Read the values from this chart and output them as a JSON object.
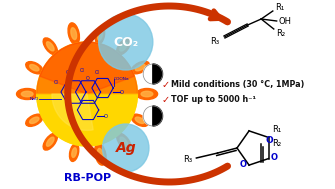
{
  "bg_color": "#ffffff",
  "rb_pop_label": "RB-POP",
  "rb_pop_color": "#0000cc",
  "co2_label": "CO₂",
  "ag_label": "Ag",
  "co2_circle_color": "#7ec8e3",
  "ag_circle_color": "#7ec8e3",
  "bullet_color": "#cc1100",
  "bullet1": "Mild conditions (30 °C, 1MPa)",
  "bullet2": "TOF up to 5000 h⁻¹",
  "arrow_color": "#cc3300",
  "spike_color": "#FF6600",
  "spike_highlight": "#FFB347",
  "ball_center_color": "#FFD700",
  "ball_edge_color": "#FF4500",
  "rb_blue": "#0000cc",
  "check_color": "#cc1100",
  "o_color": "#0000cc",
  "text_black": "#111111"
}
